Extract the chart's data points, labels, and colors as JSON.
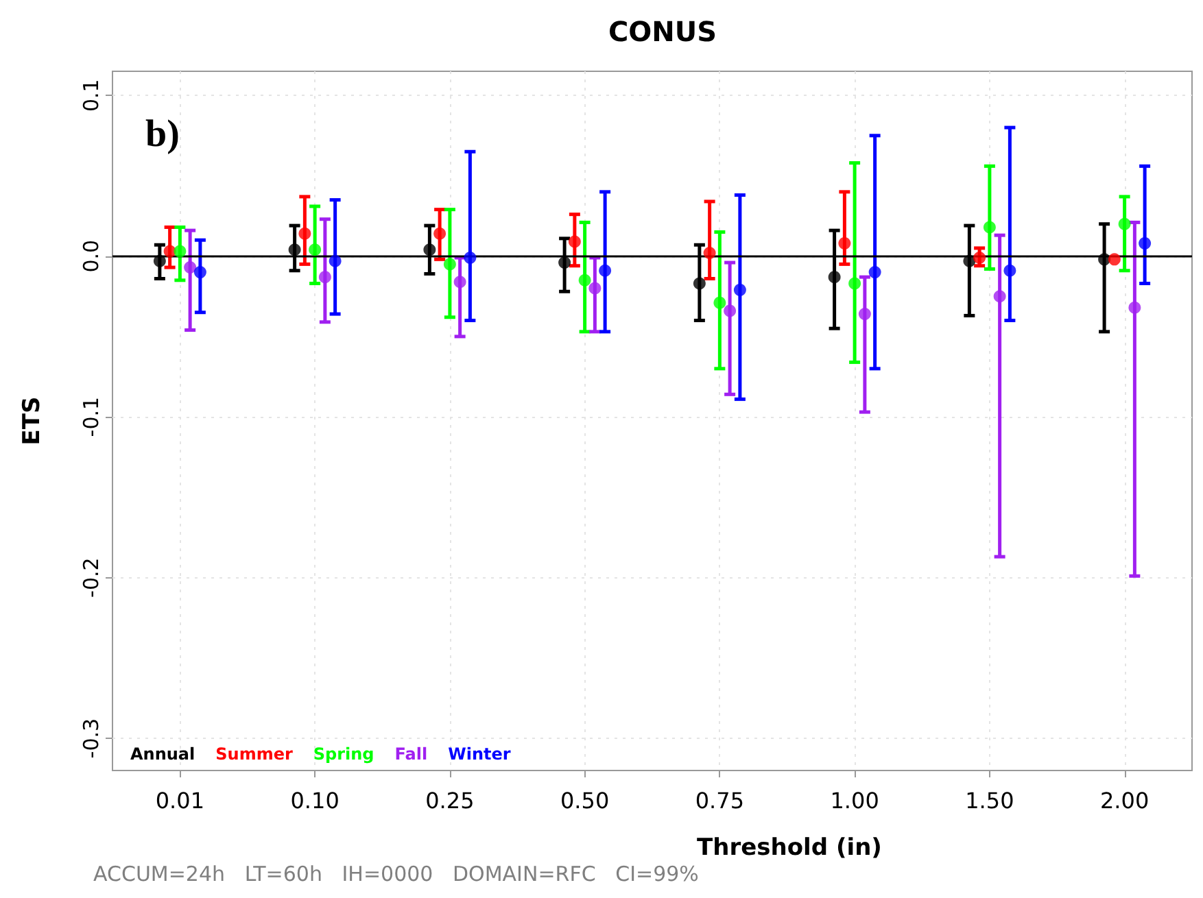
{
  "chart_data": {
    "type": "scatter",
    "title": "CONUS",
    "xlabel": "Threshold (in)",
    "ylabel": "ETS",
    "annotations": [
      "b)",
      "ACCUM=24h   LT=60h   IH=0000   DOMAIN=RFC   CI=99%"
    ],
    "categories": [
      "0.01",
      "0.10",
      "0.25",
      "0.50",
      "0.75",
      "1.00",
      "1.50",
      "2.00"
    ],
    "series": [
      {
        "name": "Annual",
        "color": "#000000",
        "values": [
          -0.003,
          0.004,
          0.004,
          -0.004,
          -0.017,
          -0.013,
          -0.003,
          -0.002
        ],
        "errors": [
          [
            -0.014,
            0.007
          ],
          [
            -0.009,
            0.019
          ],
          [
            -0.011,
            0.019
          ],
          [
            -0.022,
            0.011
          ],
          [
            -0.04,
            0.007
          ],
          [
            -0.045,
            0.016
          ],
          [
            -0.037,
            0.019
          ],
          [
            -0.047,
            0.02
          ]
        ]
      },
      {
        "name": "Summer",
        "color": "#ff0000",
        "values": [
          0.003,
          0.014,
          0.014,
          0.009,
          0.002,
          0.008,
          -0.001,
          -0.002
        ],
        "errors": [
          [
            -0.007,
            0.018
          ],
          [
            -0.005,
            0.037
          ],
          [
            -0.002,
            0.029
          ],
          [
            -0.006,
            0.026
          ],
          [
            -0.014,
            0.034
          ],
          [
            -0.005,
            0.04
          ],
          [
            -0.006,
            0.005
          ],
          null
        ]
      },
      {
        "name": "Spring",
        "color": "#00ff00",
        "values": [
          0.003,
          0.004,
          -0.005,
          -0.015,
          -0.029,
          -0.017,
          0.018,
          0.02
        ],
        "errors": [
          [
            -0.015,
            0.018
          ],
          [
            -0.017,
            0.031
          ],
          [
            -0.038,
            0.029
          ],
          [
            -0.047,
            0.021
          ],
          [
            -0.07,
            0.015
          ],
          [
            -0.066,
            0.058
          ],
          [
            -0.008,
            0.056
          ],
          [
            -0.009,
            0.037
          ]
        ]
      },
      {
        "name": "Fall",
        "color": "#a020f0",
        "values": [
          -0.007,
          -0.013,
          -0.016,
          -0.02,
          -0.034,
          -0.036,
          -0.025,
          -0.032
        ],
        "errors": [
          [
            -0.046,
            0.016
          ],
          [
            -0.041,
            0.023
          ],
          [
            -0.05,
            -0.001
          ],
          [
            -0.047,
            -0.001
          ],
          [
            -0.086,
            -0.004
          ],
          [
            -0.097,
            -0.013
          ],
          [
            -0.187,
            0.013
          ],
          [
            -0.199,
            0.021
          ]
        ]
      },
      {
        "name": "Winter",
        "color": "#0000ff",
        "values": [
          -0.01,
          -0.003,
          -0.001,
          -0.009,
          -0.021,
          -0.01,
          -0.009,
          0.008
        ],
        "errors": [
          [
            -0.035,
            0.01
          ],
          [
            -0.036,
            0.035
          ],
          [
            -0.04,
            0.065
          ],
          [
            -0.047,
            0.04
          ],
          [
            -0.089,
            0.038
          ],
          [
            -0.07,
            0.075
          ],
          [
            -0.04,
            0.08
          ],
          [
            -0.017,
            0.056
          ]
        ]
      }
    ],
    "ylim": [
      -0.32,
      0.115
    ],
    "yticks": [
      -0.3,
      -0.2,
      -0.1,
      {
        "value": 0,
        "label": "0.0"
      },
      0.1
    ],
    "ref_lines": [
      {
        "axis": "y",
        "value": 0,
        "color": "#000000"
      }
    ],
    "grid": true,
    "legend": "bottom left",
    "marker": "circle"
  }
}
